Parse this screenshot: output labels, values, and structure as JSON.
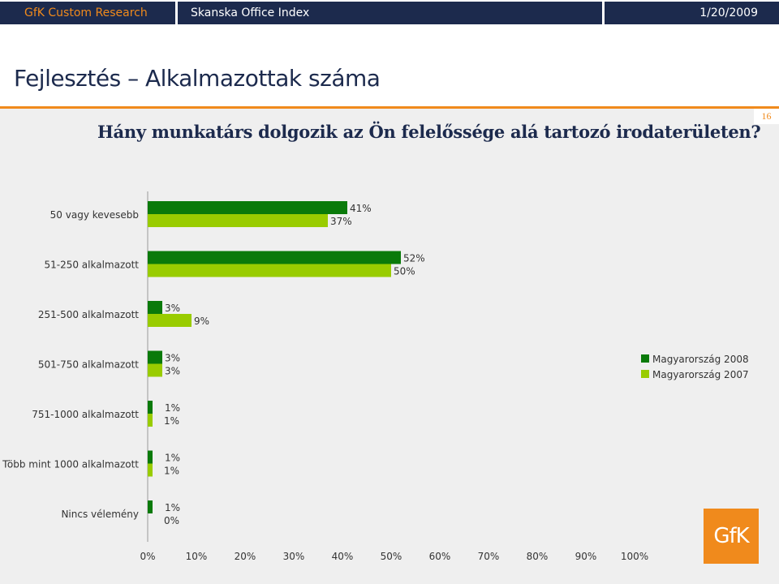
{
  "header": {
    "left": "GfK Custom Research",
    "center": "Skanska Office Index",
    "date": "1/20/2009"
  },
  "page": {
    "title": "Fejlesztés – Alkalmazottak száma",
    "question": "Hány munkatárs dolgozik az Ön felelőssége alá tartozó irodaterületen?",
    "page_number": "16",
    "logo": "GfK"
  },
  "colors": {
    "navy": "#1c2a4d",
    "orange": "#f08a1c",
    "series_2008": "#0a7a0a",
    "series_2007": "#99cc00"
  },
  "chart_data": {
    "type": "bar",
    "orientation": "horizontal",
    "categories": [
      "50 vagy kevesebb",
      "51-250 alkalmazott",
      "251-500 alkalmazott",
      "501-750 alkalmazott",
      "751-1000 alkalmazott",
      "Több mint 1000 alkalmazott",
      "Nincs vélemény"
    ],
    "series": [
      {
        "name": "Magyarország 2008",
        "values": [
          41,
          52,
          3,
          3,
          1,
          1,
          1
        ]
      },
      {
        "name": "Magyarország 2007",
        "values": [
          37,
          50,
          9,
          3,
          1,
          1,
          0
        ]
      }
    ],
    "value_labels": [
      [
        "41%",
        "52%",
        "3%",
        "3%",
        "1%",
        "1%",
        "1%"
      ],
      [
        "37%",
        "50%",
        "9%",
        "3%",
        "1%",
        "1%",
        "0%"
      ]
    ],
    "xlim": [
      0,
      100
    ],
    "x_ticks": [
      0,
      10,
      20,
      30,
      40,
      50,
      60,
      70,
      80,
      90,
      100
    ],
    "x_tick_labels": [
      "0%",
      "10%",
      "20%",
      "30%",
      "40%",
      "50%",
      "60%",
      "70%",
      "80%",
      "90%",
      "100%"
    ],
    "legend_position": "right",
    "grid": false
  }
}
